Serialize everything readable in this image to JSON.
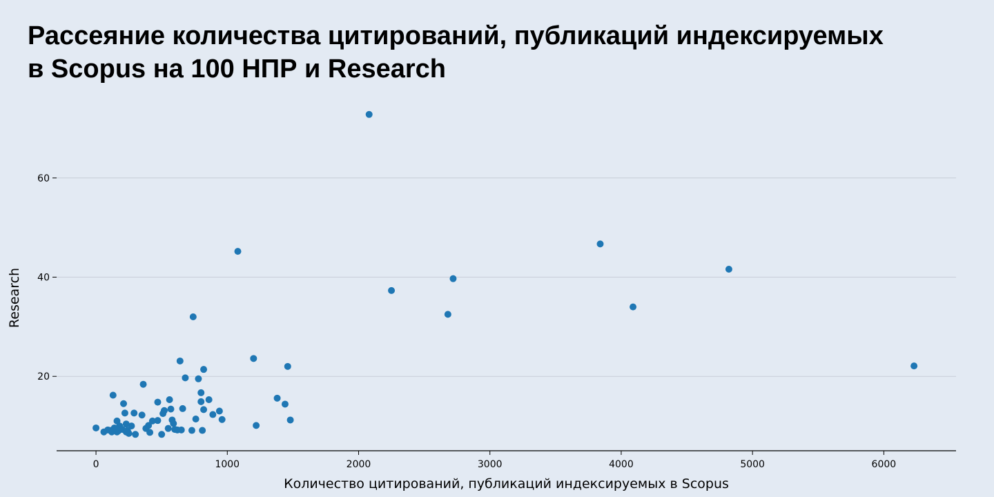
{
  "page": {
    "title_line1": "Рассеяние количества цитирований, публикаций индексируемых",
    "title_line2": "в Scopus  на 100 НПР и Research"
  },
  "colors": {
    "background": "#e3eaf3",
    "marker": "#1f77b4",
    "grid": "#c8cdd8",
    "axis": "#000000"
  },
  "chart_data": {
    "type": "scatter",
    "title": "Рассеяние количества цитирований, публикаций индексируемых в Scopus  на 100 НПР и Research",
    "xlabel": "Количество цитирований, публикаций индексируемых в Scopus",
    "ylabel": "Research",
    "xlim": [
      -300,
      6550
    ],
    "ylim": [
      5,
      75
    ],
    "xticks": [
      0,
      1000,
      2000,
      3000,
      4000,
      5000,
      6000
    ],
    "yticks": [
      20,
      40,
      60
    ],
    "grid": "horizontal",
    "legend": "none",
    "points": [
      [
        2080,
        72.8
      ],
      [
        1080,
        45.2
      ],
      [
        2250,
        37.3
      ],
      [
        2720,
        39.7
      ],
      [
        2680,
        32.5
      ],
      [
        3840,
        46.7
      ],
      [
        4090,
        34.0
      ],
      [
        4820,
        41.6
      ],
      [
        6230,
        22.1
      ],
      [
        740,
        32.0
      ],
      [
        1200,
        23.6
      ],
      [
        1460,
        22.0
      ],
      [
        640,
        23.1
      ],
      [
        820,
        21.4
      ],
      [
        680,
        19.7
      ],
      [
        780,
        19.5
      ],
      [
        360,
        18.4
      ],
      [
        130,
        16.2
      ],
      [
        800,
        16.7
      ],
      [
        560,
        15.3
      ],
      [
        860,
        15.3
      ],
      [
        1380,
        15.6
      ],
      [
        1440,
        14.4
      ],
      [
        470,
        14.8
      ],
      [
        800,
        14.9
      ],
      [
        210,
        14.5
      ],
      [
        570,
        13.4
      ],
      [
        660,
        13.5
      ],
      [
        820,
        13.3
      ],
      [
        520,
        13.1
      ],
      [
        940,
        13.0
      ],
      [
        510,
        12.5
      ],
      [
        890,
        12.3
      ],
      [
        350,
        12.2
      ],
      [
        290,
        12.6
      ],
      [
        220,
        12.6
      ],
      [
        960,
        11.3
      ],
      [
        1480,
        11.2
      ],
      [
        760,
        11.4
      ],
      [
        580,
        11.2
      ],
      [
        470,
        11.1
      ],
      [
        430,
        11.0
      ],
      [
        160,
        11.0
      ],
      [
        590,
        10.5
      ],
      [
        1220,
        10.1
      ],
      [
        270,
        10.0
      ],
      [
        230,
        10.4
      ],
      [
        400,
        10.1
      ],
      [
        180,
        10.0
      ],
      [
        140,
        9.6
      ],
      [
        0,
        9.6
      ],
      [
        380,
        9.5
      ],
      [
        550,
        9.5
      ],
      [
        600,
        9.3
      ],
      [
        620,
        9.2
      ],
      [
        650,
        9.2
      ],
      [
        730,
        9.1
      ],
      [
        810,
        9.1
      ],
      [
        200,
        9.3
      ],
      [
        240,
        9.1
      ],
      [
        170,
        9.0
      ],
      [
        110,
        9.1
      ],
      [
        90,
        9.2
      ],
      [
        60,
        8.8
      ],
      [
        120,
        8.8
      ],
      [
        160,
        8.8
      ],
      [
        250,
        8.5
      ],
      [
        410,
        8.7
      ],
      [
        300,
        8.3
      ],
      [
        500,
        8.3
      ],
      [
        230,
        8.8
      ],
      [
        150,
        9.5
      ]
    ]
  }
}
